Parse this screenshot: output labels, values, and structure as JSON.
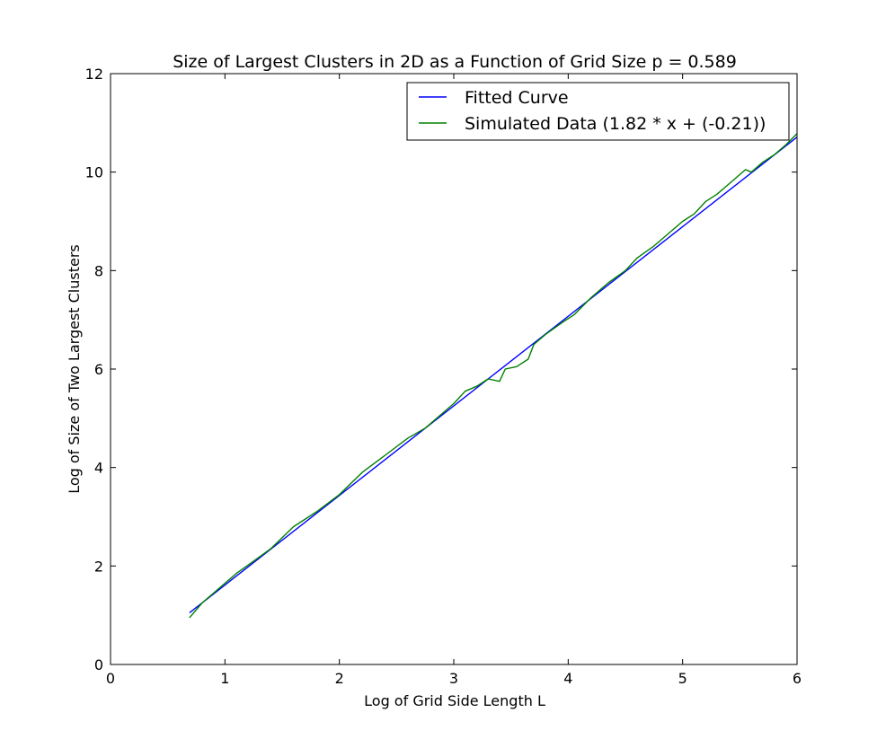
{
  "chart_data": {
    "type": "line",
    "title": "Size of Largest Clusters in 2D as a Function of Grid Size p = 0.589",
    "xlabel": "Log of Grid Side Length L",
    "ylabel": "Log of Size of Two Largest Clusters",
    "xlim": [
      0,
      6
    ],
    "ylim": [
      0,
      12
    ],
    "xticks": [
      0,
      1,
      2,
      3,
      4,
      5,
      6
    ],
    "yticks": [
      0,
      2,
      4,
      6,
      8,
      10,
      12
    ],
    "grid": false,
    "legend_position": "top-right",
    "series": [
      {
        "name": "Fitted Curve",
        "color": "#0000ff",
        "x": [
          0.69,
          6.0
        ],
        "y": [
          1.05,
          10.71
        ]
      },
      {
        "name": "Simulated Data (1.82 * x + (-0.21))",
        "color": "#008000",
        "x": [
          0.69,
          0.8,
          0.95,
          1.1,
          1.25,
          1.4,
          1.6,
          1.8,
          2.0,
          2.2,
          2.4,
          2.6,
          2.75,
          2.9,
          3.0,
          3.1,
          3.2,
          3.3,
          3.4,
          3.45,
          3.55,
          3.65,
          3.7,
          3.8,
          3.95,
          4.05,
          4.2,
          4.35,
          4.5,
          4.6,
          4.75,
          4.9,
          5.0,
          5.1,
          5.2,
          5.3,
          5.4,
          5.5,
          5.55,
          5.6,
          5.7,
          5.8,
          5.9,
          6.0
        ],
        "y": [
          0.95,
          1.25,
          1.55,
          1.85,
          2.1,
          2.35,
          2.8,
          3.1,
          3.45,
          3.9,
          4.25,
          4.6,
          4.8,
          5.1,
          5.3,
          5.55,
          5.65,
          5.8,
          5.75,
          6.0,
          6.05,
          6.2,
          6.5,
          6.7,
          6.95,
          7.1,
          7.45,
          7.75,
          8.0,
          8.25,
          8.5,
          8.8,
          9.0,
          9.15,
          9.4,
          9.55,
          9.75,
          9.95,
          10.05,
          10.0,
          10.2,
          10.35,
          10.55,
          10.78
        ]
      }
    ]
  }
}
